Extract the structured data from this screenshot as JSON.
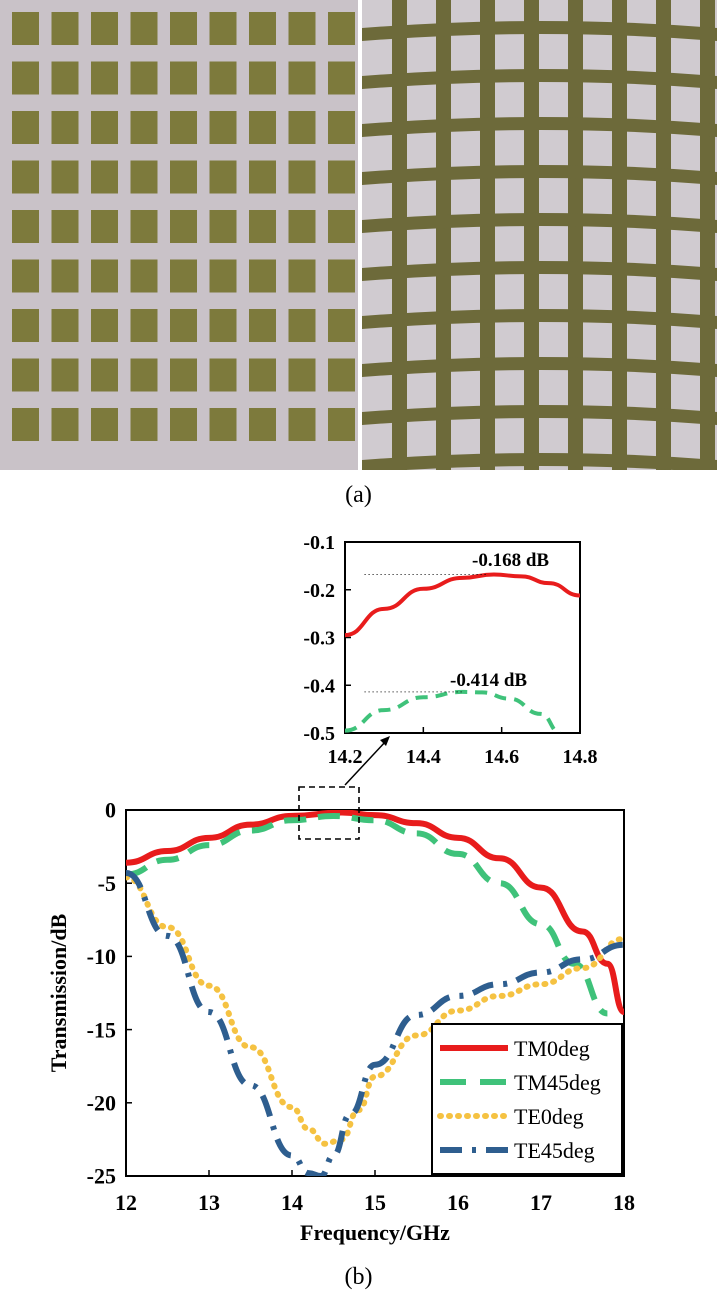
{
  "captions": {
    "a": "(a)",
    "b": "(b)"
  },
  "colors": {
    "TM0deg": "#e81c1c",
    "TM45deg": "#3fc27a",
    "TE0deg": "#f5c242",
    "TE45deg": "#2e5e8f",
    "photo_left_bg": "#c9c2c8",
    "photo_left_patch": "#7d7a3c",
    "photo_right_bg": "#d0cbd0",
    "photo_right_grid": "#6d6a3a"
  },
  "chart_data": [
    {
      "type": "line",
      "title": "",
      "xlabel": "Frequency/GHz",
      "ylabel": "Transmission/dB",
      "xlim": [
        12,
        18
      ],
      "ylim": [
        -25,
        0
      ],
      "xticks": [
        "12",
        "13",
        "14",
        "15",
        "16",
        "17",
        "18"
      ],
      "yticks": [
        "0",
        "-5",
        "-10",
        "-15",
        "-20",
        "-25"
      ],
      "legend_position": "bottom-right",
      "series": [
        {
          "name": "TM0deg",
          "style": "solid",
          "x": [
            12,
            12.5,
            13,
            13.5,
            14,
            14.6,
            15,
            15.5,
            16,
            16.5,
            17,
            17.5,
            17.8,
            18
          ],
          "y": [
            -3.6,
            -2.8,
            -1.9,
            -1.0,
            -0.4,
            -0.17,
            -0.35,
            -0.9,
            -1.9,
            -3.3,
            -5.3,
            -8.3,
            -10.5,
            -13.8
          ]
        },
        {
          "name": "TM45deg",
          "style": "dashed",
          "x": [
            12,
            12.5,
            13,
            13.5,
            14,
            14.5,
            15,
            15.5,
            16,
            16.5,
            17,
            17.4,
            17.8
          ],
          "y": [
            -4.4,
            -3.4,
            -2.4,
            -1.4,
            -0.7,
            -0.41,
            -0.7,
            -1.6,
            -3.0,
            -5.0,
            -7.8,
            -10.5,
            -13.9
          ]
        },
        {
          "name": "TE0deg",
          "style": "dotted",
          "x": [
            12,
            12.5,
            13,
            13.5,
            14,
            14.2,
            14.4,
            14.6,
            14.8,
            15,
            15.5,
            16,
            16.5,
            17,
            17.5,
            18
          ],
          "y": [
            -4.6,
            -8.0,
            -12.0,
            -16.2,
            -20.3,
            -21.8,
            -22.8,
            -22.5,
            -20.5,
            -18.2,
            -15.4,
            -13.7,
            -12.7,
            -11.9,
            -10.8,
            -8.8
          ]
        },
        {
          "name": "TE45deg",
          "style": "dashdot",
          "x": [
            12,
            12.5,
            13,
            13.5,
            14,
            14.2,
            14.35,
            14.5,
            14.7,
            15,
            15.5,
            16,
            16.5,
            17,
            17.5,
            18
          ],
          "y": [
            -4.3,
            -8.6,
            -13.8,
            -18.8,
            -23.6,
            -24.8,
            -25.0,
            -23.6,
            -20.8,
            -17.4,
            -14.0,
            -12.7,
            -11.9,
            -11.1,
            -10.2,
            -9.2
          ]
        }
      ]
    },
    {
      "type": "line",
      "title": "",
      "xlim": [
        14.2,
        14.8
      ],
      "ylim": [
        -0.5,
        -0.1
      ],
      "xticks": [
        "14.2",
        "14.4",
        "14.6",
        "14.8"
      ],
      "yticks": [
        "-0.1",
        "-0.2",
        "-0.3",
        "-0.4",
        "-0.5"
      ],
      "annotations": [
        "-0.168 dB",
        "-0.414 dB"
      ],
      "series": [
        {
          "name": "TM0deg",
          "style": "solid",
          "x": [
            14.2,
            14.3,
            14.4,
            14.5,
            14.58,
            14.65,
            14.72,
            14.8
          ],
          "y": [
            -0.295,
            -0.24,
            -0.198,
            -0.175,
            -0.168,
            -0.172,
            -0.186,
            -0.212
          ]
        },
        {
          "name": "TM45deg",
          "style": "dashed",
          "x": [
            14.2,
            14.3,
            14.4,
            14.5,
            14.55,
            14.62,
            14.7,
            14.75
          ],
          "y": [
            -0.495,
            -0.452,
            -0.425,
            -0.414,
            -0.415,
            -0.428,
            -0.46,
            -0.5
          ]
        }
      ]
    }
  ]
}
